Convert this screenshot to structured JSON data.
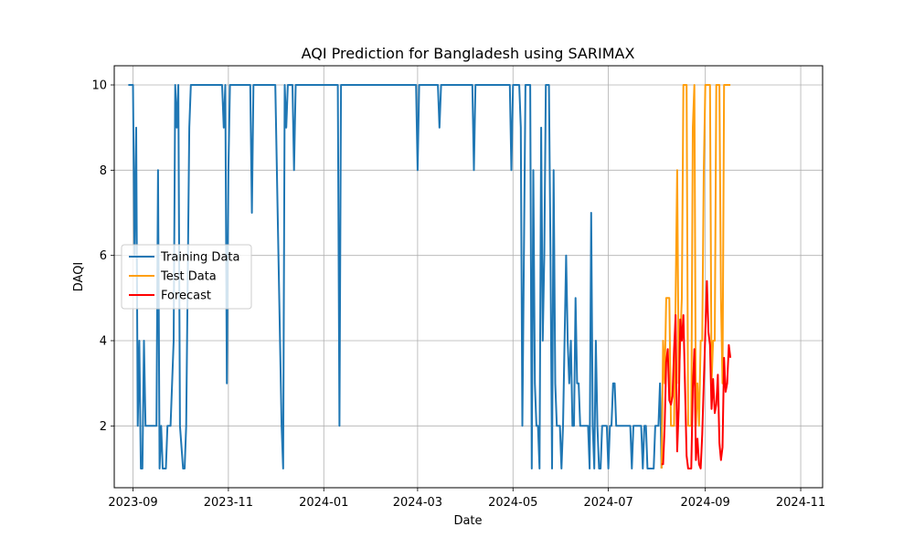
{
  "chart_data": {
    "type": "line",
    "title": "AQI Prediction for Bangladesh using SARIMAX",
    "xlabel": "Date",
    "ylabel": "DAQI",
    "xlim": [
      "2023-08-20",
      "2024-11-15"
    ],
    "ylim": [
      0.55,
      10.45
    ],
    "x_ticks": [
      {
        "date": "2023-09-01",
        "label": "2023-09"
      },
      {
        "date": "2023-11-01",
        "label": "2023-11"
      },
      {
        "date": "2024-01-01",
        "label": "2024-01"
      },
      {
        "date": "2024-03-01",
        "label": "2024-03"
      },
      {
        "date": "2024-05-01",
        "label": "2024-05"
      },
      {
        "date": "2024-07-01",
        "label": "2024-07"
      },
      {
        "date": "2024-09-01",
        "label": "2024-09"
      },
      {
        "date": "2024-11-01",
        "label": "2024-11"
      }
    ],
    "y_ticks": [
      2,
      4,
      6,
      8,
      10
    ],
    "grid": true,
    "legend": {
      "placement": "center-left",
      "entries": [
        "Training Data",
        "Test Data",
        "Forecast"
      ]
    },
    "series": [
      {
        "name": "Training Data",
        "color": "#1f77b4",
        "points": [
          [
            "2023-08-29",
            10
          ],
          [
            "2023-09-01",
            10
          ],
          [
            "2023-09-02",
            6
          ],
          [
            "2023-09-03",
            9
          ],
          [
            "2023-09-04",
            2
          ],
          [
            "2023-09-05",
            4
          ],
          [
            "2023-09-06",
            1
          ],
          [
            "2023-09-07",
            1
          ],
          [
            "2023-09-08",
            4
          ],
          [
            "2023-09-09",
            2
          ],
          [
            "2023-09-12",
            2
          ],
          [
            "2023-09-16",
            2
          ],
          [
            "2023-09-17",
            8
          ],
          [
            "2023-09-18",
            1
          ],
          [
            "2023-09-19",
            2
          ],
          [
            "2023-09-20",
            1
          ],
          [
            "2023-09-22",
            1
          ],
          [
            "2023-09-23",
            2
          ],
          [
            "2023-09-25",
            2
          ],
          [
            "2023-09-27",
            4
          ],
          [
            "2023-09-28",
            10
          ],
          [
            "2023-09-29",
            9
          ],
          [
            "2023-09-30",
            10
          ],
          [
            "2023-10-01",
            2
          ],
          [
            "2023-10-03",
            1
          ],
          [
            "2023-10-04",
            1
          ],
          [
            "2023-10-05",
            2
          ],
          [
            "2023-10-07",
            9
          ],
          [
            "2023-10-08",
            10
          ],
          [
            "2023-10-28",
            10
          ],
          [
            "2023-10-29",
            9
          ],
          [
            "2023-10-30",
            10
          ],
          [
            "2023-10-31",
            3
          ],
          [
            "2023-11-01",
            8
          ],
          [
            "2023-11-02",
            10
          ],
          [
            "2023-11-15",
            10
          ],
          [
            "2023-11-16",
            7
          ],
          [
            "2023-11-17",
            10
          ],
          [
            "2023-12-01",
            10
          ],
          [
            "2023-12-05",
            2
          ],
          [
            "2023-12-06",
            1
          ],
          [
            "2023-12-07",
            10
          ],
          [
            "2023-12-08",
            9
          ],
          [
            "2023-12-09",
            10
          ],
          [
            "2023-12-12",
            10
          ],
          [
            "2023-12-13",
            8
          ],
          [
            "2023-12-14",
            10
          ],
          [
            "2024-01-10",
            10
          ],
          [
            "2024-01-11",
            2
          ],
          [
            "2024-01-12",
            10
          ],
          [
            "2024-01-13",
            10
          ],
          [
            "2024-02-29",
            10
          ],
          [
            "2024-03-01",
            8
          ],
          [
            "2024-03-02",
            10
          ],
          [
            "2024-03-04",
            10
          ],
          [
            "2024-03-14",
            10
          ],
          [
            "2024-03-15",
            9
          ],
          [
            "2024-03-16",
            10
          ],
          [
            "2024-04-05",
            10
          ],
          [
            "2024-04-06",
            8
          ],
          [
            "2024-04-07",
            10
          ],
          [
            "2024-04-29",
            10
          ],
          [
            "2024-04-30",
            8
          ],
          [
            "2024-05-01",
            10
          ],
          [
            "2024-05-05",
            10
          ],
          [
            "2024-05-06",
            9
          ],
          [
            "2024-05-07",
            2
          ],
          [
            "2024-05-08",
            6
          ],
          [
            "2024-05-09",
            10
          ],
          [
            "2024-05-11",
            10
          ],
          [
            "2024-05-12",
            10
          ],
          [
            "2024-05-13",
            1
          ],
          [
            "2024-05-14",
            8
          ],
          [
            "2024-05-15",
            3
          ],
          [
            "2024-05-16",
            2
          ],
          [
            "2024-05-17",
            2
          ],
          [
            "2024-05-18",
            1
          ],
          [
            "2024-05-19",
            9
          ],
          [
            "2024-05-20",
            4
          ],
          [
            "2024-05-21",
            6
          ],
          [
            "2024-05-22",
            10
          ],
          [
            "2024-05-24",
            10
          ],
          [
            "2024-05-25",
            6
          ],
          [
            "2024-05-26",
            1
          ],
          [
            "2024-05-27",
            8
          ],
          [
            "2024-05-28",
            3
          ],
          [
            "2024-05-29",
            2
          ],
          [
            "2024-05-31",
            2
          ],
          [
            "2024-06-01",
            1
          ],
          [
            "2024-06-02",
            2
          ],
          [
            "2024-06-04",
            6
          ],
          [
            "2024-06-05",
            4
          ],
          [
            "2024-06-06",
            3
          ],
          [
            "2024-06-07",
            4
          ],
          [
            "2024-06-08",
            2
          ],
          [
            "2024-06-09",
            2
          ],
          [
            "2024-06-10",
            5
          ],
          [
            "2024-06-11",
            3
          ],
          [
            "2024-06-12",
            3
          ],
          [
            "2024-06-13",
            2
          ],
          [
            "2024-06-14",
            2
          ],
          [
            "2024-06-18",
            2
          ],
          [
            "2024-06-19",
            1
          ],
          [
            "2024-06-20",
            7
          ],
          [
            "2024-06-21",
            2
          ],
          [
            "2024-06-22",
            1
          ],
          [
            "2024-06-23",
            4
          ],
          [
            "2024-06-24",
            2
          ],
          [
            "2024-06-25",
            1
          ],
          [
            "2024-06-26",
            1
          ],
          [
            "2024-06-27",
            2
          ],
          [
            "2024-06-30",
            2
          ],
          [
            "2024-07-01",
            1
          ],
          [
            "2024-07-02",
            2
          ],
          [
            "2024-07-03",
            2
          ],
          [
            "2024-07-04",
            3
          ],
          [
            "2024-07-05",
            3
          ],
          [
            "2024-07-06",
            2
          ],
          [
            "2024-07-08",
            2
          ],
          [
            "2024-07-15",
            2
          ],
          [
            "2024-07-16",
            1
          ],
          [
            "2024-07-17",
            2
          ],
          [
            "2024-07-22",
            2
          ],
          [
            "2024-07-23",
            1
          ],
          [
            "2024-07-24",
            2
          ],
          [
            "2024-07-25",
            2
          ],
          [
            "2024-07-26",
            1
          ],
          [
            "2024-07-30",
            1
          ],
          [
            "2024-07-31",
            2
          ],
          [
            "2024-08-02",
            2
          ],
          [
            "2024-08-03",
            3
          ],
          [
            "2024-08-04",
            1
          ]
        ]
      },
      {
        "name": "Test Data",
        "color": "#ff9f0e",
        "points": [
          [
            "2024-08-04",
            1
          ],
          [
            "2024-08-05",
            4
          ],
          [
            "2024-08-06",
            3
          ],
          [
            "2024-08-07",
            5
          ],
          [
            "2024-08-09",
            5
          ],
          [
            "2024-08-10",
            2
          ],
          [
            "2024-08-12",
            2
          ],
          [
            "2024-08-14",
            8
          ],
          [
            "2024-08-15",
            3
          ],
          [
            "2024-08-17",
            5
          ],
          [
            "2024-08-18",
            10
          ],
          [
            "2024-08-20",
            10
          ],
          [
            "2024-08-21",
            2
          ],
          [
            "2024-08-23",
            2
          ],
          [
            "2024-08-24",
            9
          ],
          [
            "2024-08-25",
            10
          ],
          [
            "2024-08-26",
            2
          ],
          [
            "2024-08-27",
            3
          ],
          [
            "2024-08-28",
            2
          ],
          [
            "2024-08-29",
            4
          ],
          [
            "2024-08-30",
            4
          ],
          [
            "2024-08-31",
            8
          ],
          [
            "2024-09-01",
            10
          ],
          [
            "2024-09-04",
            10
          ],
          [
            "2024-09-05",
            3
          ],
          [
            "2024-09-06",
            4
          ],
          [
            "2024-09-07",
            4
          ],
          [
            "2024-09-08",
            10
          ],
          [
            "2024-09-10",
            10
          ],
          [
            "2024-09-11",
            5
          ],
          [
            "2024-09-12",
            3
          ],
          [
            "2024-09-13",
            10
          ],
          [
            "2024-09-17",
            10
          ]
        ]
      },
      {
        "name": "Forecast",
        "color": "#ff0000",
        "points": [
          [
            "2024-08-04",
            1.1
          ],
          [
            "2024-08-05",
            1.1
          ],
          [
            "2024-08-06",
            2
          ],
          [
            "2024-08-07",
            3.5
          ],
          [
            "2024-08-08",
            3.8
          ],
          [
            "2024-08-09",
            2.6
          ],
          [
            "2024-08-10",
            2.5
          ],
          [
            "2024-08-11",
            2.7
          ],
          [
            "2024-08-12",
            3.8
          ],
          [
            "2024-08-13",
            4.6
          ],
          [
            "2024-08-14",
            1.4
          ],
          [
            "2024-08-15",
            2.4
          ],
          [
            "2024-08-16",
            4.5
          ],
          [
            "2024-08-17",
            4.0
          ],
          [
            "2024-08-18",
            4.6
          ],
          [
            "2024-08-19",
            3.0
          ],
          [
            "2024-08-20",
            1.3
          ],
          [
            "2024-08-21",
            1.0
          ],
          [
            "2024-08-23",
            1.0
          ],
          [
            "2024-08-24",
            2.9
          ],
          [
            "2024-08-25",
            3.8
          ],
          [
            "2024-08-26",
            1.2
          ],
          [
            "2024-08-27",
            1.7
          ],
          [
            "2024-08-28",
            1.1
          ],
          [
            "2024-08-29",
            1.0
          ],
          [
            "2024-08-30",
            1.8
          ],
          [
            "2024-08-31",
            3.0
          ],
          [
            "2024-09-01",
            4.2
          ],
          [
            "2024-09-02",
            5.4
          ],
          [
            "2024-09-03",
            4.2
          ],
          [
            "2024-09-04",
            3.9
          ],
          [
            "2024-09-05",
            2.4
          ],
          [
            "2024-09-06",
            3.1
          ],
          [
            "2024-09-07",
            2.3
          ],
          [
            "2024-09-08",
            2.5
          ],
          [
            "2024-09-09",
            3.2
          ],
          [
            "2024-09-10",
            1.6
          ],
          [
            "2024-09-11",
            1.2
          ],
          [
            "2024-09-12",
            1.5
          ],
          [
            "2024-09-13",
            3.6
          ],
          [
            "2024-09-14",
            2.8
          ],
          [
            "2024-09-15",
            3.0
          ],
          [
            "2024-09-16",
            3.9
          ],
          [
            "2024-09-17",
            3.6
          ]
        ]
      }
    ]
  }
}
